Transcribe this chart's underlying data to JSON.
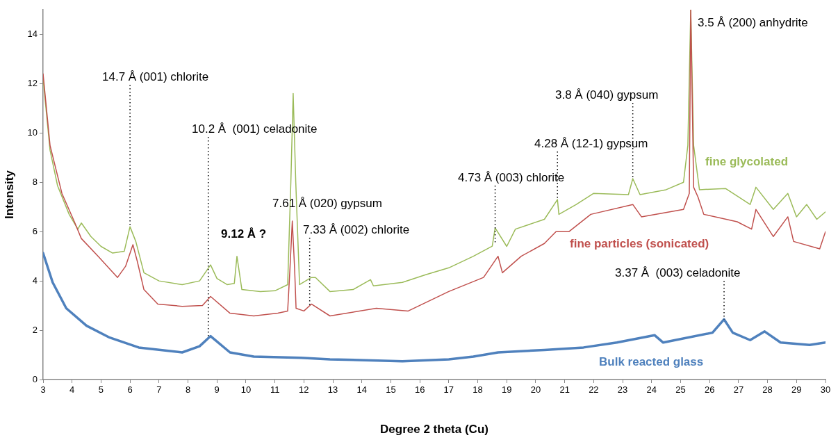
{
  "chart_data": {
    "type": "line",
    "xlabel": "Degree 2 theta (Cu)",
    "ylabel": "Intensity",
    "xlim": [
      3,
      30
    ],
    "xticks": [
      3,
      4,
      5,
      6,
      7,
      8,
      9,
      10,
      11,
      12,
      13,
      14,
      15,
      16,
      17,
      18,
      19,
      20,
      21,
      22,
      23,
      24,
      25,
      26,
      27,
      28,
      29,
      30
    ],
    "ylim": [
      0,
      15
    ],
    "yticks": [
      0,
      2,
      4,
      6,
      8,
      10,
      12,
      14
    ],
    "grid": false,
    "legend": false,
    "marker": "none",
    "line_style": "solid",
    "series": [
      {
        "name": "fine glycolated",
        "color": "#9bbb59",
        "x": [
          3.0,
          3.24,
          3.5,
          3.9,
          4.2,
          4.32,
          4.65,
          5.0,
          5.4,
          5.8,
          6.0,
          6.2,
          6.48,
          7.0,
          7.8,
          8.4,
          8.78,
          9.0,
          9.35,
          9.6,
          9.69,
          9.86,
          10.5,
          11.0,
          11.44,
          11.55,
          11.63,
          11.72,
          11.85,
          12.26,
          12.4,
          12.9,
          13.7,
          14.3,
          14.4,
          15.4,
          16.2,
          17.0,
          17.85,
          18.5,
          18.6,
          19.0,
          19.3,
          20.3,
          20.75,
          20.8,
          21.4,
          22.0,
          23.2,
          23.35,
          23.6,
          24.5,
          25.1,
          25.25,
          25.35,
          25.45,
          25.65,
          26.55,
          27.4,
          27.6,
          28.2,
          28.7,
          29.0,
          29.35,
          29.7,
          30.0
        ],
        "values": [
          12.2,
          9.3,
          7.86,
          6.7,
          6.1,
          6.35,
          5.8,
          5.4,
          5.13,
          5.2,
          6.2,
          5.6,
          4.33,
          4.0,
          3.85,
          4.0,
          4.65,
          4.1,
          3.85,
          3.9,
          5.0,
          3.65,
          3.57,
          3.6,
          3.85,
          8.0,
          11.6,
          8.0,
          3.85,
          4.14,
          4.14,
          3.57,
          3.65,
          4.05,
          3.8,
          3.94,
          4.25,
          4.53,
          5.0,
          5.41,
          6.15,
          5.4,
          6.1,
          6.5,
          7.3,
          6.7,
          7.1,
          7.55,
          7.5,
          8.15,
          7.5,
          7.7,
          8.0,
          9.5,
          15,
          9.5,
          7.7,
          7.75,
          7.1,
          7.8,
          6.9,
          7.55,
          6.6,
          7.1,
          6.5,
          6.8
        ]
      },
      {
        "name": "fine particles (sonicated)",
        "color": "#c0504d",
        "x": [
          3.0,
          3.24,
          3.65,
          4.08,
          4.32,
          4.9,
          5.57,
          5.85,
          6.1,
          6.25,
          6.48,
          6.96,
          7.8,
          8.5,
          8.78,
          9.45,
          10.27,
          11.1,
          11.44,
          11.52,
          11.6,
          11.68,
          11.73,
          12.0,
          12.26,
          12.9,
          14.5,
          15.6,
          17.0,
          18.2,
          18.7,
          18.85,
          19.5,
          20.3,
          20.7,
          21.15,
          21.9,
          23.35,
          23.65,
          25.1,
          25.3,
          25.35,
          25.45,
          25.6,
          25.8,
          26.95,
          27.45,
          27.6,
          28.2,
          28.7,
          28.9,
          29.8,
          30.0
        ],
        "values": [
          12.4,
          9.5,
          7.55,
          6.4,
          5.72,
          5.0,
          4.14,
          4.6,
          5.47,
          4.8,
          3.65,
          3.06,
          2.97,
          3.0,
          3.37,
          2.69,
          2.58,
          2.69,
          2.78,
          4.5,
          6.43,
          4.5,
          2.89,
          2.78,
          3.06,
          2.58,
          2.89,
          2.78,
          3.57,
          4.14,
          5.0,
          4.33,
          5.0,
          5.52,
          6.0,
          6.0,
          6.7,
          7.1,
          6.6,
          6.9,
          7.55,
          15,
          7.8,
          7.4,
          6.7,
          6.4,
          6.1,
          6.9,
          5.8,
          6.6,
          5.6,
          5.3,
          6.0
        ]
      },
      {
        "name": "Bulk reacted glass",
        "color": "#4f81bd",
        "x": [
          3.0,
          3.33,
          3.8,
          4.5,
          5.3,
          6.3,
          7.8,
          8.4,
          8.78,
          9.45,
          10.27,
          11.9,
          12.9,
          15.4,
          17.0,
          17.85,
          18.7,
          20.3,
          21.65,
          22.8,
          24.1,
          24.4,
          26.1,
          26.5,
          26.8,
          27.4,
          27.9,
          28.45,
          29.45,
          30.0
        ],
        "values": [
          5.13,
          3.94,
          2.89,
          2.18,
          1.7,
          1.3,
          1.1,
          1.35,
          1.76,
          1.1,
          0.93,
          0.88,
          0.82,
          0.74,
          0.82,
          0.93,
          1.1,
          1.2,
          1.3,
          1.5,
          1.8,
          1.5,
          1.9,
          2.44,
          1.9,
          1.6,
          1.95,
          1.5,
          1.4,
          1.5
        ]
      }
    ],
    "annotations": [
      {
        "text": "14.7 Å (001) chlorite",
        "x": 6.0,
        "y": 6.2
      },
      {
        "text": "10.2 Å  (001) celadonite",
        "x": 8.7,
        "y": 1.7
      },
      "9.12 Å ?",
      "7.61 Å (020) gypsum",
      {
        "text": "7.33 Å (002) chlorite",
        "x": 12.2,
        "y": 3.0
      },
      {
        "text": "4.73 Å (003) chlorite",
        "x": 18.6,
        "y": 5.5
      },
      {
        "text": "4.28 Å (12-1) gypsum",
        "x": 20.75,
        "y": 7.3
      },
      {
        "text": "3.8 Å (040) gypsum",
        "x": 23.35,
        "y": 8.15
      },
      "3.5 Å (200) anhydrite",
      {
        "text": "3.37 Å  (003) celadonite",
        "x": 26.5,
        "y": 2.44
      }
    ]
  }
}
